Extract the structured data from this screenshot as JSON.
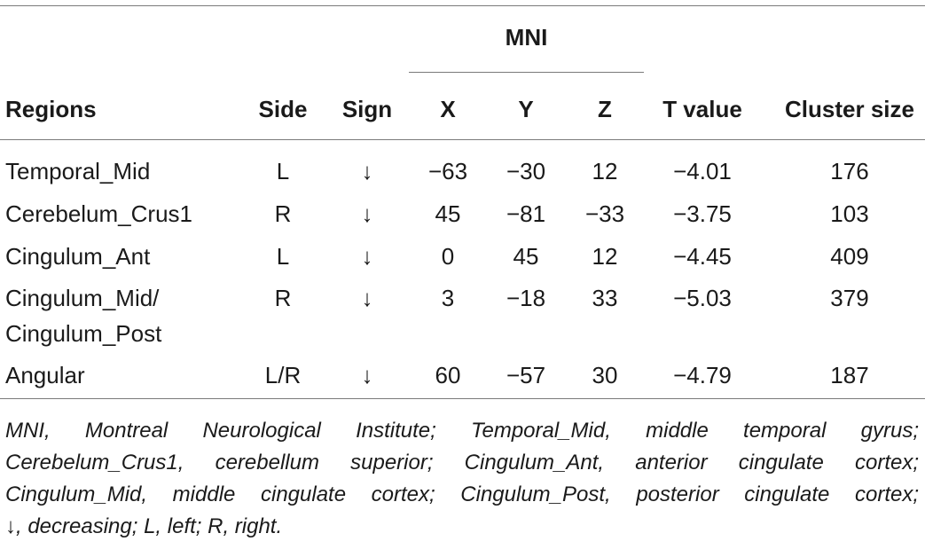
{
  "table": {
    "group_header": "MNI",
    "headers": [
      "Regions",
      "Side",
      "Sign",
      "X",
      "Y",
      "Z",
      "T value",
      "Cluster size"
    ],
    "rows": [
      {
        "region": [
          "Temporal_Mid"
        ],
        "side": "L",
        "sign": "↓",
        "x": "−63",
        "y": "−30",
        "z": "12",
        "t": "−4.01",
        "cluster": "176"
      },
      {
        "region": [
          "Cerebelum_Crus1"
        ],
        "side": "R",
        "sign": "↓",
        "x": "45",
        "y": "−81",
        "z": "−33",
        "t": "−3.75",
        "cluster": "103"
      },
      {
        "region": [
          "Cingulum_Ant"
        ],
        "side": "L",
        "sign": "↓",
        "x": "0",
        "y": "45",
        "z": "12",
        "t": "−4.45",
        "cluster": "409"
      },
      {
        "region": [
          "Cingulum_Mid/",
          "Cingulum_Post"
        ],
        "side": "R",
        "sign": "↓",
        "x": "3",
        "y": "−18",
        "z": "33",
        "t": "−5.03",
        "cluster": "379"
      },
      {
        "region": [
          "Angular"
        ],
        "side": "L/R",
        "sign": "↓",
        "x": "60",
        "y": "−57",
        "z": "30",
        "t": "−4.79",
        "cluster": "187"
      }
    ]
  },
  "footnote": {
    "lines": [
      "MNI, Montreal Neurological Institute; Temporal_Mid, middle temporal gyrus;",
      "Cerebelum_Crus1, cerebellum superior; Cingulum_Ant, anterior cingulate cortex;",
      "Cingulum_Mid, middle cingulate cortex; Cingulum_Post, posterior cingulate cortex;",
      "↓, decreasing; L, left; R, right."
    ]
  }
}
